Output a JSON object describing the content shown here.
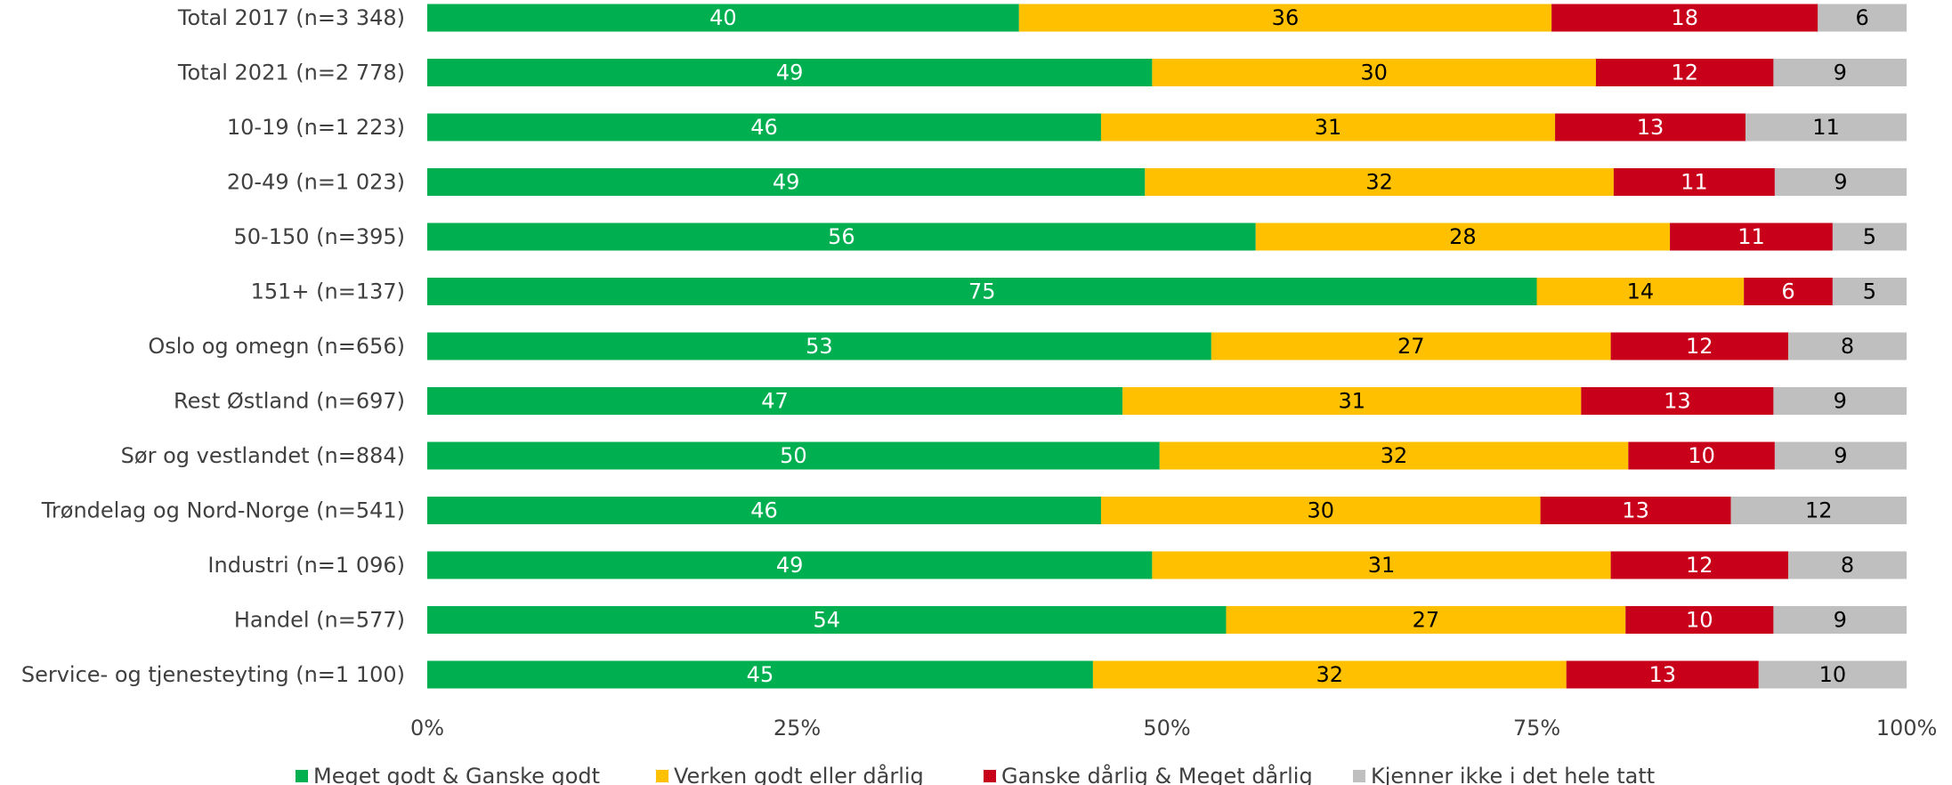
{
  "chart_data": {
    "type": "bar",
    "orientation": "horizontal",
    "stacked": true,
    "normalized": true,
    "categories": [
      "Total 2017 (n=3 348)",
      "Total 2021 (n=2 778)",
      "10-19 (n=1 223)",
      "20-49 (n=1 023)",
      "50-150 (n=395)",
      "151+ (n=137)",
      "Oslo og omegn (n=656)",
      "Rest Østland (n=697)",
      "Sør og vestlandet (n=884)",
      "Trøndelag og Nord-Norge (n=541)",
      "Industri (n=1 096)",
      "Handel (n=577)",
      "Service- og tjenesteyting (n=1 100)"
    ],
    "series": [
      {
        "name": "Meget godt & Ganske godt",
        "color": "#00B050",
        "label_color": "#ffffff",
        "values": [
          40,
          49,
          46,
          49,
          56,
          75,
          53,
          47,
          50,
          46,
          49,
          54,
          45
        ]
      },
      {
        "name": "Verken godt eller dårlig",
        "color": "#FFC000",
        "label_color": "#000000",
        "values": [
          36,
          30,
          31,
          32,
          28,
          14,
          27,
          31,
          32,
          30,
          31,
          27,
          32
        ]
      },
      {
        "name": "Ganske dårlig & Meget dårlig",
        "color": "#C9001A",
        "label_color": "#ffffff",
        "values": [
          18,
          12,
          13,
          11,
          11,
          6,
          12,
          13,
          10,
          13,
          12,
          10,
          13
        ]
      },
      {
        "name": "Kjenner ikke i det hele tatt",
        "color": "#BFBFBF",
        "label_color": "#000000",
        "values": [
          6,
          9,
          11,
          9,
          5,
          5,
          8,
          9,
          9,
          12,
          8,
          9,
          10
        ]
      }
    ],
    "x_ticks": [
      "0%",
      "25%",
      "50%",
      "75%",
      "100%"
    ],
    "xlim": [
      0,
      100
    ],
    "title": "",
    "xlabel": "",
    "ylabel": "",
    "grid": false,
    "legend_position": "bottom"
  }
}
